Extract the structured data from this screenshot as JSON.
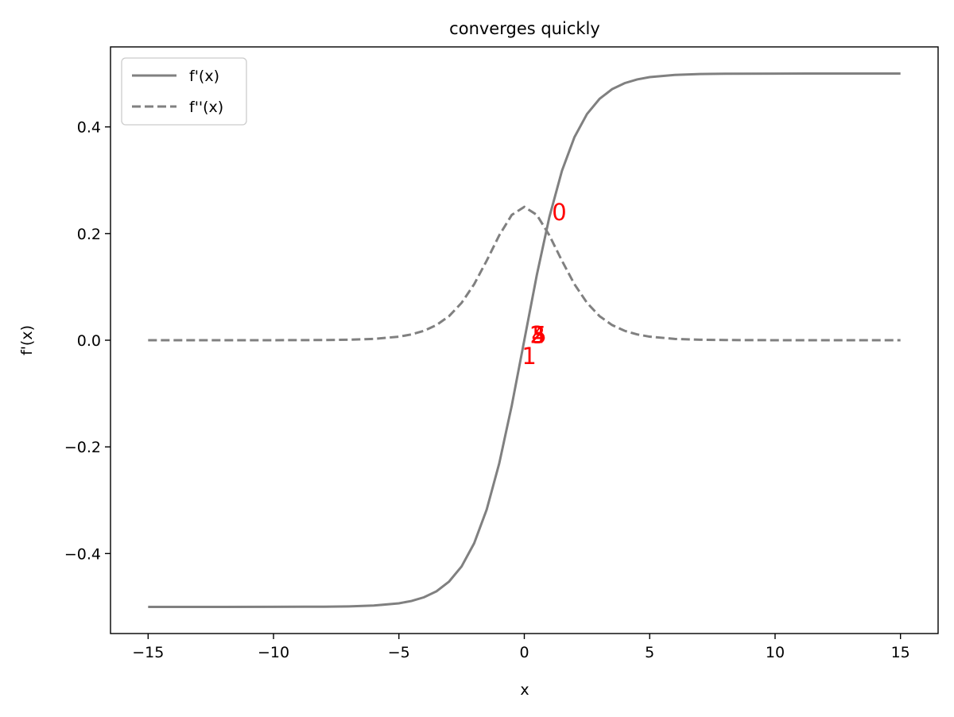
{
  "chart_data": {
    "type": "line",
    "title": "converges quickly",
    "xlabel": "x",
    "ylabel": "f'(x)",
    "xlim": [
      -16.5,
      16.5
    ],
    "ylim": [
      -0.55,
      0.55
    ],
    "x_ticks": [
      -15,
      -10,
      -5,
      0,
      5,
      10,
      15
    ],
    "x_tick_labels": [
      "−15",
      "−10",
      "−5",
      "0",
      "5",
      "10",
      "15"
    ],
    "y_ticks": [
      -0.4,
      -0.2,
      0.0,
      0.2,
      0.4
    ],
    "y_tick_labels": [
      "−0.4",
      "−0.2",
      "0.0",
      "0.2",
      "0.4"
    ],
    "grid": false,
    "legend_position": "top-left",
    "series": [
      {
        "name": "f'(x)",
        "style": "solid",
        "color": "#808080",
        "x": [
          -15,
          -12,
          -10,
          -8,
          -7,
          -6,
          -5,
          -4.5,
          -4,
          -3.5,
          -3,
          -2.5,
          -2,
          -1.5,
          -1,
          -0.5,
          0,
          0.5,
          1,
          1.5,
          2,
          2.5,
          3,
          3.5,
          4,
          4.5,
          5,
          6,
          7,
          8,
          10,
          12,
          15
        ],
        "y": [
          -0.5,
          -0.5,
          -0.49995,
          -0.49966,
          -0.49909,
          -0.49753,
          -0.49331,
          -0.48901,
          -0.48201,
          -0.47069,
          -0.45257,
          -0.42414,
          -0.3808,
          -0.31757,
          -0.23106,
          -0.12246,
          0.0,
          0.12246,
          0.23106,
          0.31757,
          0.3808,
          0.42414,
          0.45257,
          0.47069,
          0.48201,
          0.48901,
          0.49331,
          0.49753,
          0.49909,
          0.49966,
          0.49995,
          0.5,
          0.5
        ]
      },
      {
        "name": "f''(x)",
        "style": "dashed",
        "color": "#808080",
        "x": [
          -15,
          -12,
          -10,
          -8,
          -7,
          -6,
          -5,
          -4.5,
          -4,
          -3.5,
          -3,
          -2.5,
          -2,
          -1.5,
          -1,
          -0.5,
          0,
          0.5,
          1,
          1.5,
          2,
          2.5,
          3,
          3.5,
          4,
          4.5,
          5,
          6,
          7,
          8,
          10,
          12,
          15
        ],
        "y": [
          0.0,
          1e-05,
          5e-05,
          0.00034,
          0.00091,
          0.00247,
          0.00665,
          0.01088,
          0.01766,
          0.02845,
          0.04518,
          0.0701,
          0.10499,
          0.14914,
          0.19661,
          0.235,
          0.25,
          0.235,
          0.19661,
          0.14914,
          0.10499,
          0.0701,
          0.04518,
          0.02845,
          0.01766,
          0.01088,
          0.00665,
          0.00247,
          0.00091,
          0.00034,
          5e-05,
          1e-05,
          0.0
        ]
      }
    ],
    "annotations": [
      {
        "text": "0",
        "x": 1.1,
        "y": 0.24,
        "color": "#ff0000"
      },
      {
        "text": "1",
        "x": -0.1,
        "y": -0.03,
        "color": "#ff0000"
      },
      {
        "text": "2",
        "x": 0.22,
        "y": 0.01,
        "color": "#ff0000"
      },
      {
        "text": "3",
        "x": 0.25,
        "y": 0.01,
        "color": "#ff0000"
      },
      {
        "text": "4",
        "x": 0.28,
        "y": 0.01,
        "color": "#ff0000"
      },
      {
        "text": "5",
        "x": 0.31,
        "y": 0.01,
        "color": "#ff0000"
      }
    ]
  }
}
